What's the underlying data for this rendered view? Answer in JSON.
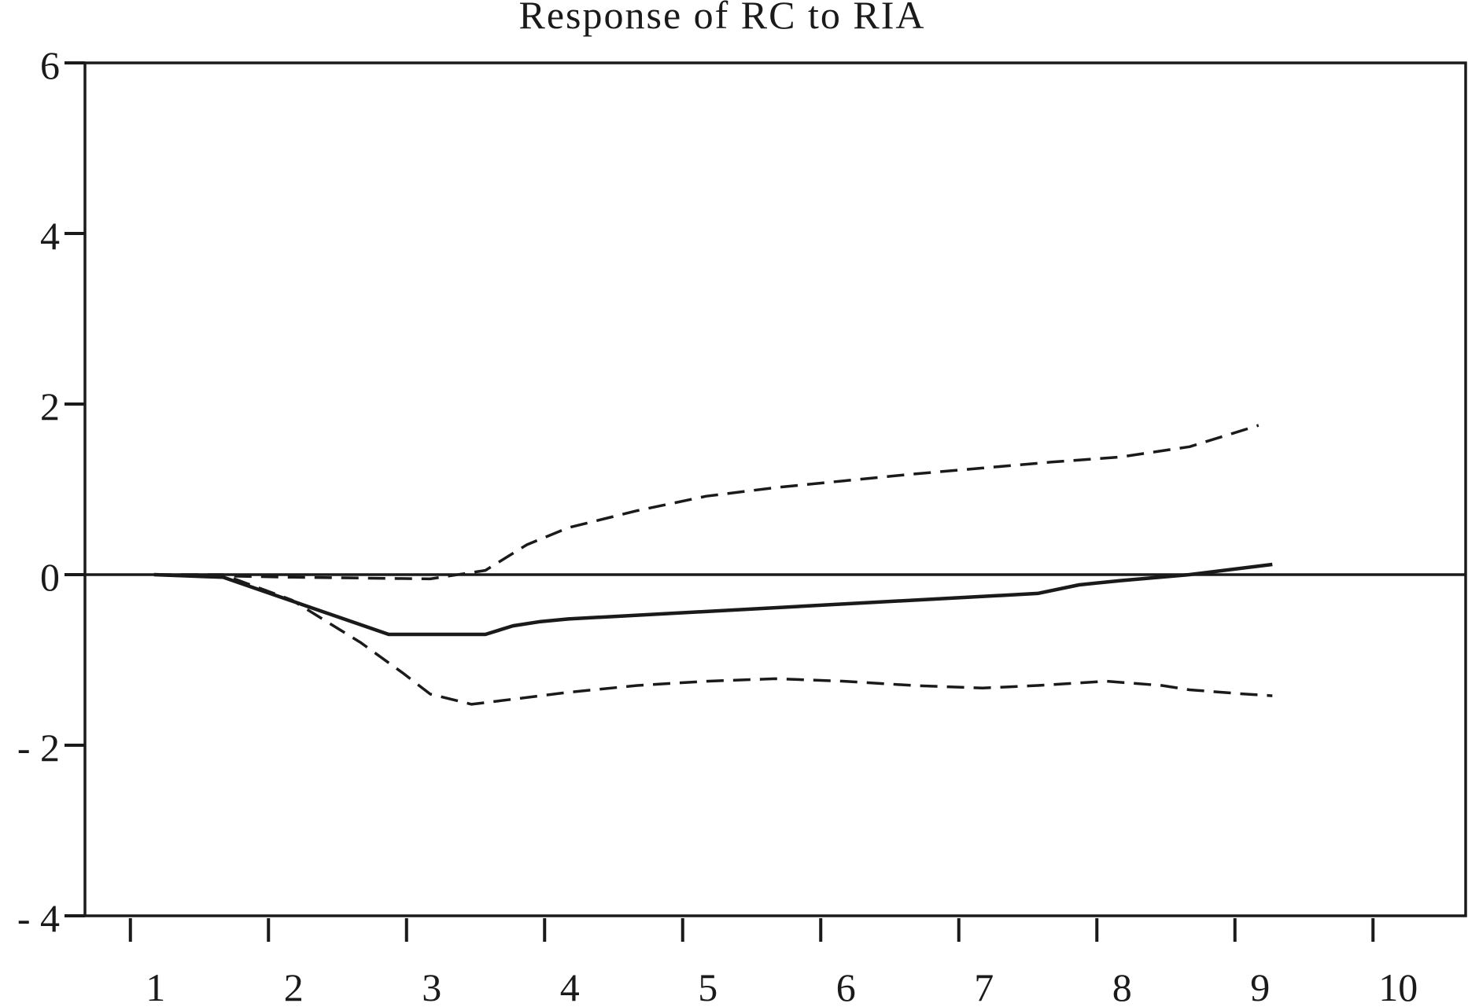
{
  "chart_data": {
    "type": "line",
    "title": "Response of  RC to RIA",
    "xlabel": "",
    "ylabel": "",
    "xlim": [
      0.5,
      10.5
    ],
    "ylim": [
      -4,
      6
    ],
    "yticks": [
      6,
      4,
      2,
      0,
      -2,
      -4
    ],
    "ytick_labels": [
      "6",
      "4",
      "2",
      "0",
      "- 2",
      "- 4"
    ],
    "xticks": [
      1,
      2,
      3,
      4,
      5,
      6,
      7,
      8,
      9,
      10
    ],
    "xtick_labels": [
      "1",
      "2",
      "3",
      "4",
      "5",
      "6",
      "7",
      "8",
      "9",
      "10"
    ],
    "zero_line": 0,
    "grid": false,
    "series": [
      {
        "style": "solid",
        "x": [
          1,
          1.5,
          2.7,
          3.4,
          3.6,
          3.8,
          4.0,
          7.4,
          7.7,
          8.0,
          8.5,
          9.1
        ],
        "values": [
          0.0,
          -0.03,
          -0.7,
          -0.7,
          -0.6,
          -0.55,
          -0.52,
          -0.22,
          -0.12,
          -0.07,
          0.0,
          0.12
        ]
      },
      {
        "style": "dashed",
        "x": [
          1,
          1.5,
          2.0,
          2.5,
          2.8,
          3.0,
          3.3,
          3.5,
          3.8,
          4.0,
          4.5,
          5.0,
          5.5,
          6.0,
          6.5,
          7.0,
          7.4,
          7.9,
          8.3,
          8.5,
          8.9,
          9.1
        ],
        "values": [
          0.0,
          0.0,
          -0.3,
          -0.8,
          -1.15,
          -1.4,
          -1.52,
          -1.48,
          -1.42,
          -1.38,
          -1.3,
          -1.25,
          -1.22,
          -1.25,
          -1.3,
          -1.33,
          -1.3,
          -1.25,
          -1.3,
          -1.35,
          -1.4,
          -1.42
        ]
      },
      {
        "style": "dashed",
        "x": [
          1,
          2.0,
          3.0,
          3.4,
          3.7,
          4.0,
          4.5,
          5.0,
          5.5,
          6.0,
          6.5,
          7.0,
          7.5,
          8.0,
          8.5,
          9.0
        ],
        "values": [
          0.0,
          -0.03,
          -0.05,
          0.05,
          0.35,
          0.55,
          0.75,
          0.92,
          1.02,
          1.1,
          1.18,
          1.25,
          1.32,
          1.38,
          1.5,
          1.75
        ]
      }
    ]
  }
}
